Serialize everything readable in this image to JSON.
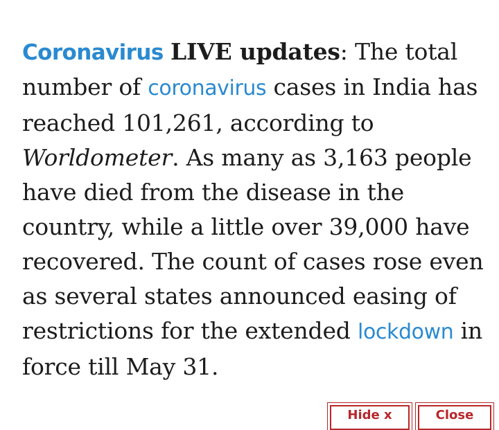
{
  "article": {
    "tag": "Coronavirus",
    "headline": "LIVE updates",
    "colon": ": The total number of ",
    "link_coronavirus": "coronavirus",
    "text_2": " cases in India has reached 101,261, according to ",
    "source": "Worldometer",
    "text_3": ". As many as 3,163 people have died from the disease in the country, while a little over 39,000 have recovered. The count of cases rose even as several states announced easing of restrictions for the extended ",
    "link_lockdown": "lockdown",
    "text_4": " in force till May 31."
  },
  "buttons": {
    "hide_label": "Hide x",
    "close_label": "Close"
  },
  "colors": {
    "link": "#2a8ad0",
    "button_border": "#b8262a",
    "text": "#1c1c1c"
  }
}
